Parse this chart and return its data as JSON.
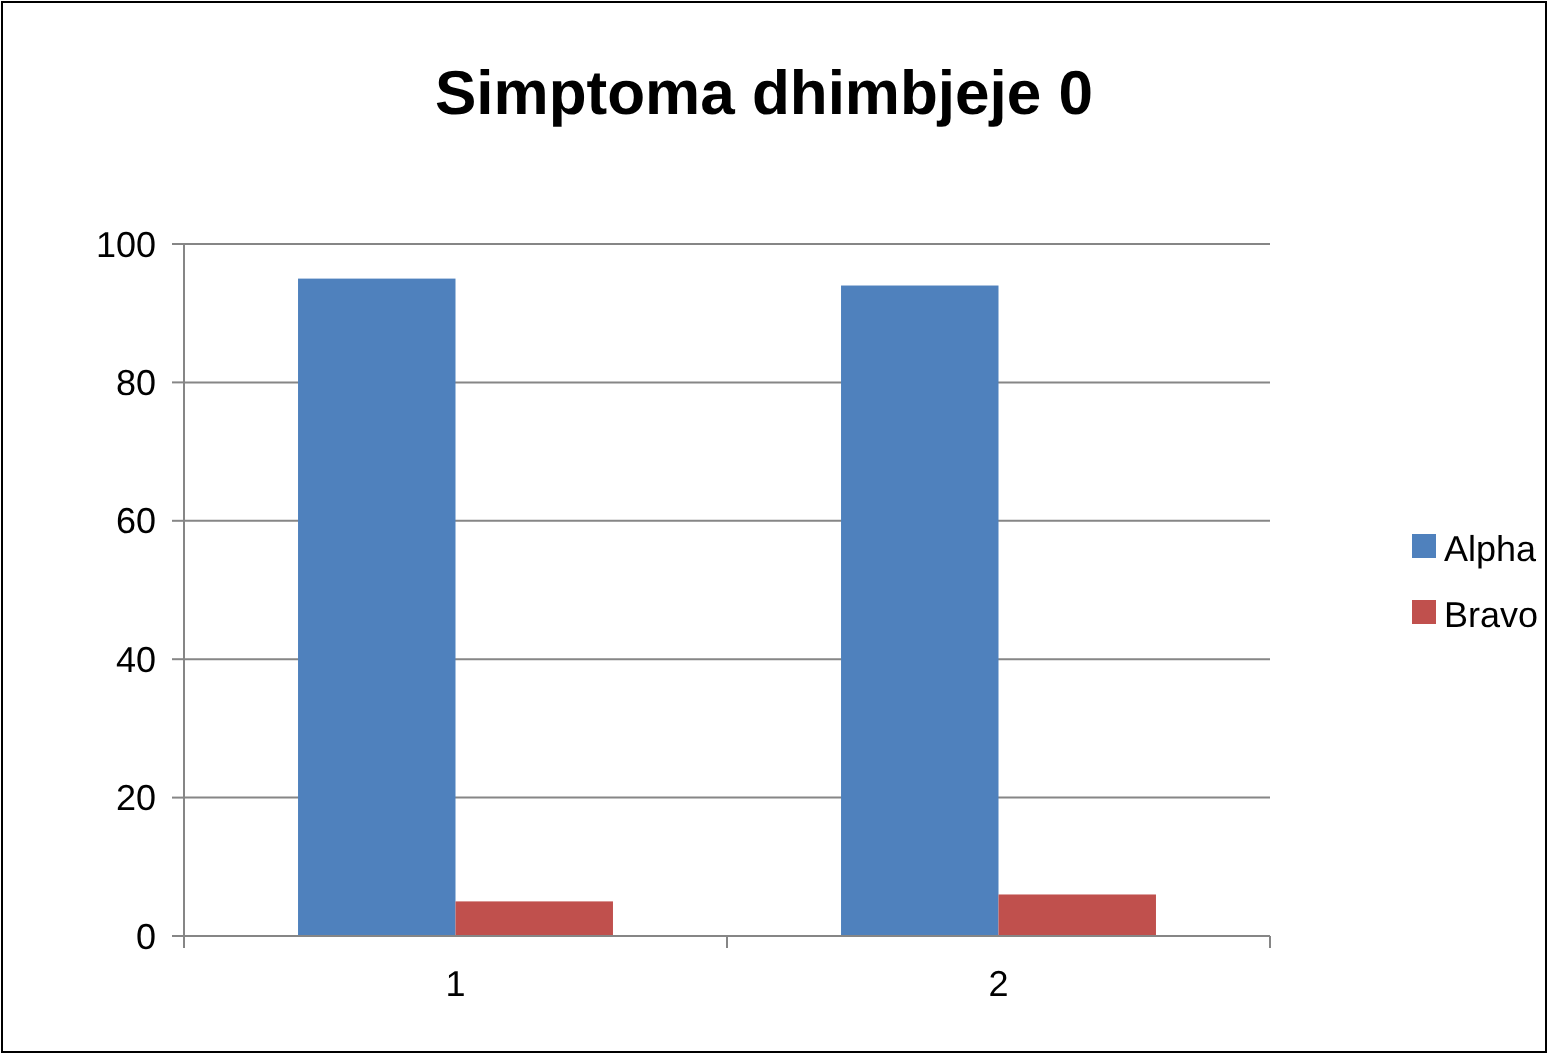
{
  "chart_data": {
    "type": "bar",
    "title": "Simptoma dhimbjeje 0",
    "categories": [
      "1",
      "2"
    ],
    "series": [
      {
        "name": "Alpha",
        "color": "#4f81bd",
        "values": [
          95,
          94
        ]
      },
      {
        "name": "Bravo",
        "color": "#c0504d",
        "values": [
          5,
          6
        ]
      }
    ],
    "ylim": [
      0,
      100
    ],
    "yticks": [
      0,
      20,
      40,
      60,
      80,
      100
    ],
    "grid": "y",
    "legend": "right"
  }
}
